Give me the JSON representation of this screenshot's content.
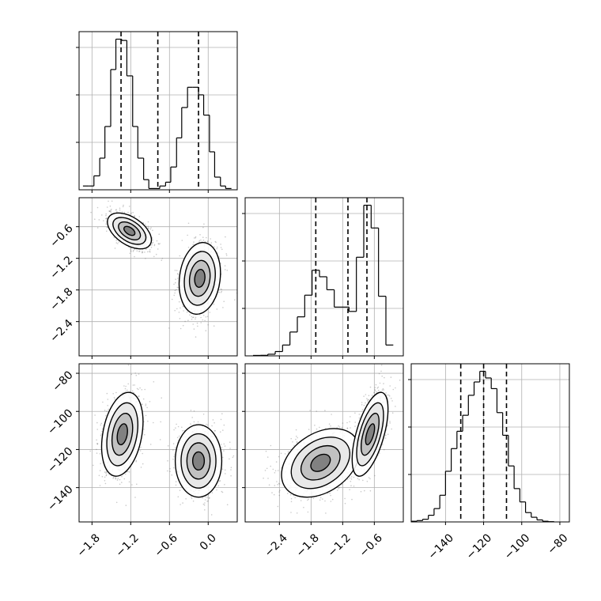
{
  "chart_data": {
    "type": "corner",
    "parameters": [
      {
        "id": "p0",
        "label": "",
        "range": [
          -2.0,
          0.45
        ],
        "ticks": [
          -1.8,
          -1.2,
          -0.6,
          0.0
        ],
        "tick_labels": [
          "−1.8",
          "−1.2",
          "−0.6",
          "0.0"
        ],
        "quantiles": [
          -1.35,
          -0.78,
          -0.15
        ],
        "histogram": {
          "bin_edges": [
            -1.94,
            -1.85,
            -1.77,
            -1.68,
            -1.6,
            -1.51,
            -1.43,
            -1.34,
            -1.26,
            -1.17,
            -1.09,
            -1.0,
            -0.92,
            -0.83,
            -0.75,
            -0.66,
            -0.58,
            -0.49,
            -0.41,
            -0.32,
            -0.24,
            -0.15,
            -0.07,
            0.02,
            0.1,
            0.19,
            0.27,
            0.36
          ],
          "counts": [
            0.3,
            0.3,
            1.1,
            2.5,
            5.0,
            9.5,
            11.9,
            11.8,
            9.0,
            5.0,
            2.5,
            0.8,
            0.1,
            0.1,
            0.3,
            0.6,
            1.8,
            4.1,
            6.5,
            8.1,
            8.1,
            7.5,
            5.9,
            3.0,
            1.0,
            0.3,
            0.1
          ]
        }
      },
      {
        "id": "p1",
        "label": "",
        "range": [
          -3.05,
          -0.05
        ],
        "ticks": [
          -2.4,
          -1.8,
          -1.2,
          -0.6
        ],
        "tick_labels": [
          "−2.4",
          "−1.8",
          "−1.2",
          "−0.6"
        ],
        "quantiles": [
          -1.71,
          -1.1,
          -0.74
        ],
        "histogram": {
          "bin_edges": [
            -2.9,
            -2.76,
            -2.62,
            -2.48,
            -2.34,
            -2.2,
            -2.06,
            -1.92,
            -1.78,
            -1.64,
            -1.5,
            -1.36,
            -1.22,
            -1.08,
            -0.94,
            -0.8,
            -0.66,
            -0.52,
            -0.38,
            -0.24
          ],
          "counts": [
            0.04,
            0.05,
            0.15,
            0.4,
            1.0,
            2.2,
            3.6,
            5.6,
            7.9,
            7.3,
            6.1,
            4.5,
            4.5,
            4.1,
            9.1,
            13.9,
            11.8,
            5.5,
            1.0
          ]
        }
      },
      {
        "id": "p2",
        "label": "",
        "range": [
          -158,
          -75
        ],
        "ticks": [
          -140,
          -120,
          -100,
          -80
        ],
        "tick_labels": [
          "−140",
          "−120",
          "−100",
          "−80"
        ],
        "quantiles": [
          -132,
          -120,
          -108
        ],
        "histogram": {
          "bin_edges": [
            -158,
            -155,
            -152,
            -149,
            -146,
            -143,
            -140,
            -137,
            -134,
            -131,
            -128,
            -125,
            -122,
            -119,
            -116,
            -113,
            -110,
            -107,
            -104,
            -101,
            -98,
            -95,
            -92,
            -89,
            -86,
            -83
          ],
          "counts": [
            0.05,
            0.1,
            0.2,
            0.5,
            1.0,
            2.0,
            3.8,
            5.5,
            6.8,
            8.0,
            9.5,
            10.5,
            11.3,
            10.8,
            10.0,
            8.2,
            6.5,
            4.2,
            2.5,
            1.5,
            0.7,
            0.35,
            0.15,
            0.05,
            0.02
          ]
        }
      }
    ],
    "pairs": [
      {
        "x": "p0",
        "y": "p1",
        "modes": [
          {
            "center": [
              -1.22,
              -0.68
            ],
            "sigma": [
              0.17,
              0.17
            ],
            "corr": -0.5
          },
          {
            "center": [
              -0.13,
              -1.58
            ],
            "sigma": [
              0.16,
              0.34
            ],
            "corr": 0.15
          }
        ]
      },
      {
        "x": "p0",
        "y": "p2",
        "modes": [
          {
            "center": [
              -1.33,
              -112
            ],
            "sigma": [
              0.16,
              11.0
            ],
            "corr": 0.3
          },
          {
            "center": [
              -0.15,
              -126
            ],
            "sigma": [
              0.18,
              9.5
            ],
            "corr": 0.0
          }
        ]
      },
      {
        "x": "p1",
        "y": "p2",
        "modes": [
          {
            "center": [
              -1.62,
              -127
            ],
            "sigma": [
              0.37,
              9.0
            ],
            "corr": 0.35
          },
          {
            "center": [
              -0.68,
              -112
            ],
            "sigma": [
              0.17,
              11.0
            ],
            "corr": 0.6
          }
        ]
      }
    ],
    "contour_levels_sigma": [
      0.5,
      1.0,
      1.5,
      2.0
    ],
    "grid": true,
    "quantile_line_style": "dashed",
    "histogram_style": "step"
  }
}
